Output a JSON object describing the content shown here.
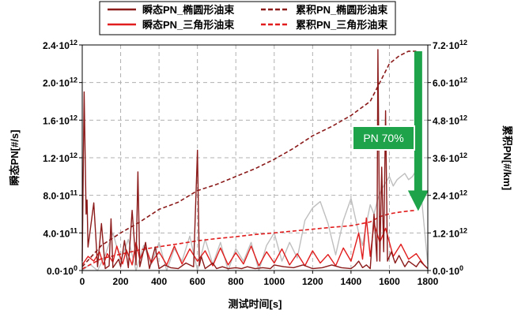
{
  "chart_data": {
    "type": "line",
    "xlabel": "测试时间[s]",
    "ylabel_left": "瞬态PN[#/s]",
    "ylabel_right": "累积PN[#/km]",
    "xlim": [
      0,
      1800
    ],
    "ylim_left": [
      0,
      2400000000000
    ],
    "ylim_right": [
      0,
      7200000000000
    ],
    "grid": true,
    "legend_position": "top",
    "x_ticks": [
      "0",
      "200",
      "400",
      "600",
      "800",
      "1000",
      "1200",
      "1400",
      "1600",
      "1800"
    ],
    "y_left_ticks": [
      {
        "mant": "0.0",
        "exp": "0"
      },
      {
        "mant": "4.0",
        "exp": "11"
      },
      {
        "mant": "8.0",
        "exp": "11"
      },
      {
        "mant": "1.2",
        "exp": "12"
      },
      {
        "mant": "1.6",
        "exp": "12"
      },
      {
        "mant": "2.0",
        "exp": "12"
      },
      {
        "mant": "2.4",
        "exp": "12"
      }
    ],
    "y_right_ticks": [
      {
        "mant": "0.0",
        "exp": "0"
      },
      {
        "mant": "1.2",
        "exp": "12"
      },
      {
        "mant": "2.4",
        "exp": "12"
      },
      {
        "mant": "3.6",
        "exp": "12"
      },
      {
        "mant": "4.8",
        "exp": "12"
      },
      {
        "mant": "6.0",
        "exp": "12"
      },
      {
        "mant": "7.2",
        "exp": "12"
      }
    ],
    "tick_multiplier": "·10",
    "series": [
      {
        "name": "瞬态PN_椭圆形油束",
        "axis": "left",
        "style": "solid",
        "color": "#8b1a1a",
        "x": [
          0,
          10,
          20,
          25,
          30,
          60,
          80,
          100,
          120,
          140,
          150,
          160,
          190,
          200,
          220,
          240,
          260,
          280,
          290,
          300,
          330,
          350,
          380,
          400,
          430,
          460,
          500,
          540,
          580,
          600,
          610,
          620,
          640,
          680,
          700,
          730,
          760,
          800,
          830,
          860,
          900,
          940,
          980,
          1000,
          1050,
          1100,
          1150,
          1200,
          1250,
          1300,
          1350,
          1400,
          1420,
          1440,
          1460,
          1480,
          1500,
          1520,
          1535,
          1540,
          1550,
          1560,
          1570,
          1580,
          1590,
          1610,
          1630,
          1650,
          1680,
          1700,
          1740,
          1760,
          1800
        ],
        "y": [
          100000000000,
          1900000000000,
          600000000000,
          750000000000,
          250000000000,
          720000000000,
          40000000000,
          500000000000,
          20000000000,
          50000000000,
          550000000000,
          30000000000,
          120000000000,
          40000000000,
          320000000000,
          30000000000,
          640000000000,
          60000000000,
          1050000000000,
          40000000000,
          300000000000,
          20000000000,
          250000000000,
          20000000000,
          60000000000,
          30000000000,
          20000000000,
          80000000000,
          40000000000,
          1280000000000,
          50000000000,
          150000000000,
          20000000000,
          80000000000,
          20000000000,
          40000000000,
          20000000000,
          30000000000,
          20000000000,
          40000000000,
          20000000000,
          30000000000,
          20000000000,
          60000000000,
          40000000000,
          30000000000,
          60000000000,
          20000000000,
          30000000000,
          60000000000,
          30000000000,
          20000000000,
          50000000000,
          100000000000,
          30000000000,
          60000000000,
          20000000000,
          600000000000,
          100000000000,
          2350000000000,
          100000000000,
          1100000000000,
          200000000000,
          1700000000000,
          100000000000,
          200000000000,
          80000000000,
          160000000000,
          40000000000,
          100000000000,
          40000000000,
          100000000000,
          20000000000
        ]
      },
      {
        "name": "瞬态PN_三角形油束",
        "axis": "left",
        "style": "solid",
        "color": "#e11d1d",
        "x": [
          0,
          30,
          60,
          90,
          110,
          130,
          160,
          180,
          210,
          230,
          260,
          280,
          300,
          330,
          360,
          400,
          440,
          480,
          520,
          560,
          600,
          640,
          680,
          720,
          760,
          800,
          840,
          880,
          920,
          960,
          1000,
          1040,
          1080,
          1120,
          1160,
          1200,
          1240,
          1280,
          1320,
          1360,
          1400,
          1440,
          1460,
          1480,
          1500,
          1520,
          1550,
          1580,
          1620,
          1660,
          1700,
          1740,
          1780,
          1800
        ],
        "y": [
          60000000000,
          150000000000,
          100000000000,
          200000000000,
          60000000000,
          180000000000,
          90000000000,
          260000000000,
          70000000000,
          220000000000,
          60000000000,
          300000000000,
          120000000000,
          250000000000,
          80000000000,
          200000000000,
          60000000000,
          260000000000,
          70000000000,
          230000000000,
          100000000000,
          210000000000,
          50000000000,
          240000000000,
          60000000000,
          190000000000,
          70000000000,
          260000000000,
          50000000000,
          200000000000,
          80000000000,
          230000000000,
          60000000000,
          180000000000,
          50000000000,
          210000000000,
          80000000000,
          170000000000,
          50000000000,
          240000000000,
          100000000000,
          400000000000,
          120000000000,
          560000000000,
          150000000000,
          500000000000,
          300000000000,
          450000000000,
          150000000000,
          280000000000,
          120000000000,
          180000000000,
          60000000000,
          20000000000
        ]
      },
      {
        "name": "累积PN_椭圆形油束",
        "axis": "right",
        "style": "dashed",
        "color": "#8b1a1a",
        "x": [
          0,
          100,
          200,
          300,
          400,
          500,
          600,
          700,
          800,
          900,
          1000,
          1100,
          1200,
          1300,
          1400,
          1500,
          1550,
          1600,
          1650,
          1700,
          1740
        ],
        "y": [
          120000000000,
          800000000000,
          1200000000000,
          1550000000000,
          1950000000000,
          2180000000000,
          2550000000000,
          2750000000000,
          3000000000000,
          3250000000000,
          3550000000000,
          3900000000000,
          4300000000000,
          4600000000000,
          4950000000000,
          5400000000000,
          6000000000000,
          6600000000000,
          6850000000000,
          7000000000000,
          7000000000000
        ]
      },
      {
        "name": "累积PN_三角形油束",
        "axis": "right",
        "style": "dashed",
        "color": "#e11d1d",
        "x": [
          0,
          100,
          200,
          300,
          400,
          500,
          600,
          700,
          800,
          900,
          1000,
          1100,
          1200,
          1300,
          1400,
          1500,
          1550,
          1600,
          1650,
          1700,
          1740
        ],
        "y": [
          50000000000,
          380000000000,
          520000000000,
          660000000000,
          760000000000,
          850000000000,
          950000000000,
          1020000000000,
          1080000000000,
          1150000000000,
          1200000000000,
          1260000000000,
          1320000000000,
          1380000000000,
          1430000000000,
          1550000000000,
          1720000000000,
          1810000000000,
          1860000000000,
          1900000000000,
          1920000000000
        ]
      },
      {
        "axis": "right",
        "style": "solid",
        "color": "#bfbfbf",
        "x": [
          0,
          40,
          80,
          120,
          160,
          200,
          240,
          280,
          320,
          360,
          400,
          440,
          480,
          520,
          560,
          600,
          640,
          680,
          720,
          760,
          800,
          840,
          880,
          920,
          960,
          1000,
          1040,
          1080,
          1120,
          1160,
          1200,
          1240,
          1280,
          1320,
          1360,
          1400,
          1440,
          1460,
          1480,
          1500,
          1520,
          1540,
          1560,
          1580,
          1600,
          1620,
          1640,
          1660,
          1680,
          1700,
          1720,
          1740,
          1760,
          1780,
          1800
        ],
        "y": [
          0,
          200000000000,
          0,
          500000000000,
          1200000000000,
          300000000000,
          1000000000000,
          0,
          800000000000,
          200000000000,
          900000000000,
          0,
          700000000000,
          300000000000,
          1100000000000,
          0,
          1000000000000,
          200000000000,
          900000000000,
          0,
          700000000000,
          300000000000,
          900000000000,
          0,
          800000000000,
          1200000000000,
          300000000000,
          900000000000,
          400000000000,
          1600000000000,
          2000000000000,
          2200000000000,
          1500000000000,
          500000000000,
          1600000000000,
          2300000000000,
          1200000000000,
          800000000000,
          1500000000000,
          2100000000000,
          1800000000000,
          2300000000000,
          2600000000000,
          2800000000000,
          3000000000000,
          2700000000000,
          2900000000000,
          3000000000000,
          3100000000000,
          2900000000000,
          3000000000000,
          3200000000000,
          2800000000000,
          1500000000000,
          200000000000
        ]
      }
    ],
    "annotations": [
      {
        "text": "PN 70%",
        "x": 1750,
        "from_y_right": 7000000000000,
        "to_y_right": 1900000000000,
        "color": "#1ea34a"
      }
    ]
  }
}
